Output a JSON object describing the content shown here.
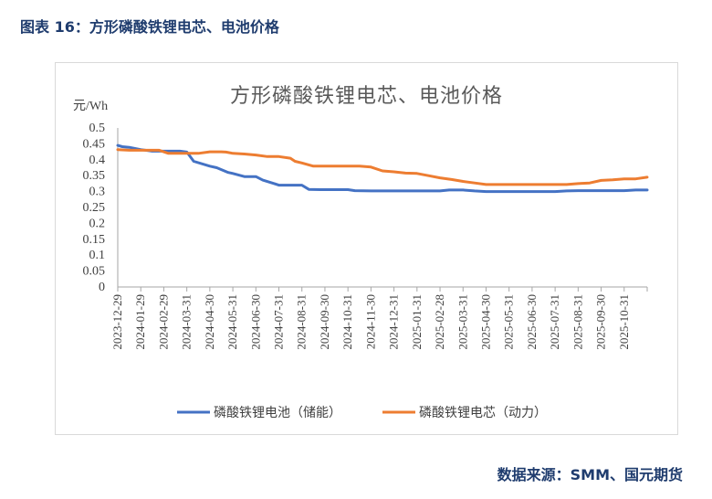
{
  "caption": "图表 16：方形磷酸铁锂电芯、电池价格",
  "source": "数据来源：SMM、国元期货",
  "chart_data": {
    "type": "line",
    "title": "方形磷酸铁锂电芯、电池价格",
    "ylabel": "元/Wh",
    "xlabel": "",
    "ylim": [
      0,
      0.5
    ],
    "yticks": [
      "0",
      "0.05",
      "0.1",
      "0.15",
      "0.2",
      "0.25",
      "0.3",
      "0.35",
      "0.4",
      "0.45",
      "0.5"
    ],
    "categories": [
      "2023-12-29",
      "2024-01-29",
      "2024-02-29",
      "2024-03-31",
      "2024-04-30",
      "2024-05-31",
      "2024-06-30",
      "2024-07-31",
      "2024-08-31",
      "2024-09-30",
      "2024-10-31",
      "2024-11-30",
      "2024-12-31",
      "2025-01-31",
      "2025-02-28",
      "2025-03-31",
      "2025-04-30",
      "2025-05-31",
      "2025-06-30",
      "2025-07-31",
      "2025-08-31",
      "2025-09-30",
      "2025-10-31"
    ],
    "legend_position": "bottom",
    "series": [
      {
        "name": "磷酸铁锂电池（储能）",
        "color": "#4472C4",
        "x": [
          0,
          0.2,
          0.5,
          1.0,
          1.5,
          2.0,
          2.3,
          2.7,
          3.0,
          3.3,
          4.0,
          4.3,
          4.8,
          5.0,
          5.5,
          6.0,
          6.3,
          6.8,
          7.0,
          7.5,
          8.0,
          8.3,
          8.8,
          9.5,
          10.0,
          10.3,
          11.0,
          11.5,
          12.0,
          12.5,
          13.0,
          13.5,
          14.0,
          14.4,
          14.8,
          15.0,
          15.5,
          16.0,
          17.0,
          18.0,
          19.0,
          19.5,
          20.0,
          21.0,
          22.0,
          22.5,
          23.0
        ],
        "values": [
          0.445,
          0.441,
          0.439,
          0.432,
          0.427,
          0.427,
          0.427,
          0.427,
          0.424,
          0.395,
          0.38,
          0.375,
          0.36,
          0.357,
          0.347,
          0.347,
          0.336,
          0.325,
          0.32,
          0.32,
          0.32,
          0.307,
          0.306,
          0.306,
          0.306,
          0.303,
          0.302,
          0.302,
          0.302,
          0.302,
          0.302,
          0.302,
          0.302,
          0.305,
          0.305,
          0.305,
          0.302,
          0.3,
          0.3,
          0.3,
          0.3,
          0.302,
          0.303,
          0.303,
          0.303,
          0.305,
          0.305
        ]
      },
      {
        "name": "磷酸铁锂电芯（动力）",
        "color": "#ED7D31",
        "x": [
          0,
          0.5,
          1.0,
          1.4,
          1.8,
          2.2,
          2.7,
          3.3,
          3.5,
          4.0,
          4.5,
          4.7,
          5.0,
          5.5,
          6.0,
          6.5,
          7.0,
          7.5,
          7.7,
          8.0,
          8.5,
          9.0,
          10.0,
          10.5,
          11.0,
          11.5,
          12.0,
          12.5,
          13.0,
          13.5,
          14.0,
          14.5,
          15.0,
          15.5,
          16.0,
          17.0,
          18.0,
          19.0,
          19.5,
          20.0,
          20.5,
          21.0,
          21.5,
          22.0,
          22.5,
          23.0
        ],
        "values": [
          0.432,
          0.43,
          0.43,
          0.43,
          0.43,
          0.42,
          0.42,
          0.42,
          0.42,
          0.425,
          0.425,
          0.424,
          0.42,
          0.418,
          0.415,
          0.41,
          0.41,
          0.405,
          0.395,
          0.39,
          0.38,
          0.38,
          0.38,
          0.38,
          0.377,
          0.365,
          0.362,
          0.358,
          0.357,
          0.35,
          0.343,
          0.338,
          0.332,
          0.327,
          0.322,
          0.322,
          0.322,
          0.322,
          0.322,
          0.325,
          0.327,
          0.335,
          0.337,
          0.34,
          0.34,
          0.345
        ]
      }
    ]
  }
}
